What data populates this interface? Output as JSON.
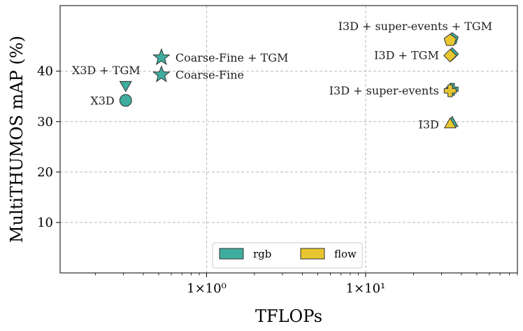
{
  "chart_data": {
    "type": "scatter",
    "xscale": "log",
    "xlabel": "TFLOPs",
    "ylabel": "MultiTHUMOS mAP (%)",
    "xlim": [
      0.12,
      90
    ],
    "ylim": [
      0,
      53
    ],
    "x_major_ticks": [
      {
        "value": 1,
        "label": "1×10⁰"
      },
      {
        "value": 10,
        "label": "1×10¹"
      }
    ],
    "y_ticks": [
      10,
      20,
      30,
      40
    ],
    "grid": true,
    "colors": {
      "rgb": "#3fae9e",
      "flow": "#e8c631",
      "edge": "#333333"
    },
    "legend": {
      "placement": "bottom-center",
      "entries": [
        {
          "label": "rgb",
          "color": "#3fae9e"
        },
        {
          "label": "flow",
          "color": "#e8c631"
        }
      ]
    },
    "points": [
      {
        "name": "X3D",
        "x": 0.31,
        "y": 34.2,
        "marker": "circle",
        "modality": "rgb"
      },
      {
        "name": "X3D + TGM",
        "x": 0.31,
        "y": 37.3,
        "marker": "triangle-down",
        "modality": "rgb"
      },
      {
        "name": "Coarse-Fine",
        "x": 0.52,
        "y": 39.3,
        "marker": "star",
        "modality": "rgb"
      },
      {
        "name": "Coarse-Fine + TGM",
        "x": 0.52,
        "y": 42.7,
        "marker": "star",
        "modality": "rgb"
      },
      {
        "name": "I3D",
        "x": 35.0,
        "y": 29.7,
        "marker": "triangle-up",
        "modality": "rgb"
      },
      {
        "name": "I3D",
        "x": 34.0,
        "y": 29.4,
        "marker": "triangle-up",
        "modality": "flow"
      },
      {
        "name": "I3D + super-events",
        "x": 35.0,
        "y": 36.4,
        "marker": "plus",
        "modality": "rgb"
      },
      {
        "name": "I3D + super-events",
        "x": 34.0,
        "y": 36.1,
        "marker": "plus",
        "modality": "flow"
      },
      {
        "name": "I3D + TGM",
        "x": 35.0,
        "y": 43.4,
        "marker": "diamond",
        "modality": "rgb"
      },
      {
        "name": "I3D + TGM",
        "x": 34.0,
        "y": 43.1,
        "marker": "diamond",
        "modality": "flow"
      },
      {
        "name": "I3D + super-events + TGM",
        "x": 35.0,
        "y": 46.4,
        "marker": "pentagon",
        "modality": "rgb"
      },
      {
        "name": "I3D + super-events + TGM",
        "x": 34.0,
        "y": 46.1,
        "marker": "pentagon",
        "modality": "flow"
      }
    ],
    "annotations": [
      {
        "text": "X3D",
        "x": 0.31,
        "y": 34.2,
        "anchor": "left-of"
      },
      {
        "text": "X3D + TGM",
        "x": 0.31,
        "y": 37.3,
        "anchor": "above"
      },
      {
        "text": "Coarse-Fine",
        "x": 0.52,
        "y": 39.3,
        "anchor": "right-of"
      },
      {
        "text": "Coarse-Fine + TGM",
        "x": 0.52,
        "y": 42.7,
        "anchor": "right-of"
      },
      {
        "text": "I3D",
        "x": 34.0,
        "y": 29.5,
        "anchor": "left-of"
      },
      {
        "text": "I3D + super-events",
        "x": 34.0,
        "y": 36.2,
        "anchor": "left-of"
      },
      {
        "text": "I3D + TGM",
        "x": 34.0,
        "y": 43.2,
        "anchor": "left-of"
      },
      {
        "text": "I3D + super-events + TGM",
        "x": 34.0,
        "y": 46.2,
        "anchor": "above"
      }
    ]
  }
}
